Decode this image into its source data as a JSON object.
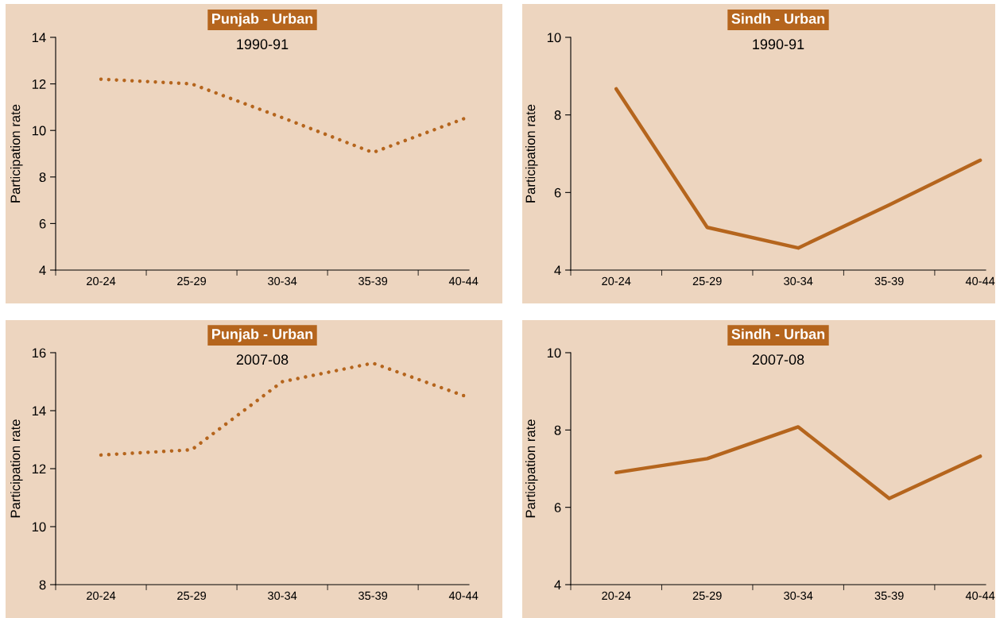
{
  "chart_data": [
    {
      "type": "line",
      "title": "Punjab - Urban",
      "subtitle": "1990-91",
      "ylabel": "Participation rate",
      "categories": [
        "20-24",
        "25-29",
        "30-34",
        "35-39",
        "40-44"
      ],
      "series": [
        {
          "color": "#b5651d",
          "values": [
            12.2,
            12.0,
            10.55,
            9.05,
            10.5
          ]
        }
      ],
      "ylim": [
        4,
        14
      ],
      "yticks": [
        4,
        6,
        8,
        10,
        12,
        14
      ],
      "line_style": "dotted",
      "grid": false
    },
    {
      "type": "line",
      "title": "Sindh - Urban",
      "subtitle": "1990-91",
      "ylabel": "Participation rate",
      "categories": [
        "20-24",
        "25-29",
        "30-34",
        "35-39",
        "40-44"
      ],
      "series": [
        {
          "color": "#b5651d",
          "values": [
            8.67,
            5.1,
            4.57,
            5.68,
            6.83
          ]
        }
      ],
      "ylim": [
        4,
        10
      ],
      "yticks": [
        4,
        6,
        8,
        10
      ],
      "line_style": "solid",
      "grid": false
    },
    {
      "type": "line",
      "title": "Punjab - Urban",
      "subtitle": "2007-08",
      "ylabel": "Participation rate",
      "categories": [
        "20-24",
        "25-29",
        "30-34",
        "35-39",
        "40-44"
      ],
      "series": [
        {
          "color": "#b5651d",
          "values": [
            12.47,
            12.65,
            15.0,
            15.64,
            14.52
          ]
        }
      ],
      "ylim": [
        8,
        16
      ],
      "yticks": [
        8,
        10,
        12,
        14,
        16
      ],
      "line_style": "dotted",
      "grid": false
    },
    {
      "type": "line",
      "title": "Sindh - Urban",
      "subtitle": "2007-08",
      "ylabel": "Participation rate",
      "categories": [
        "20-24",
        "25-29",
        "30-34",
        "35-39",
        "40-44"
      ],
      "series": [
        {
          "color": "#b5651d",
          "values": [
            6.9,
            7.26,
            8.08,
            6.23,
            7.32
          ]
        }
      ],
      "ylim": [
        4,
        10
      ],
      "yticks": [
        4,
        6,
        8,
        10
      ],
      "line_style": "solid",
      "grid": false
    }
  ]
}
